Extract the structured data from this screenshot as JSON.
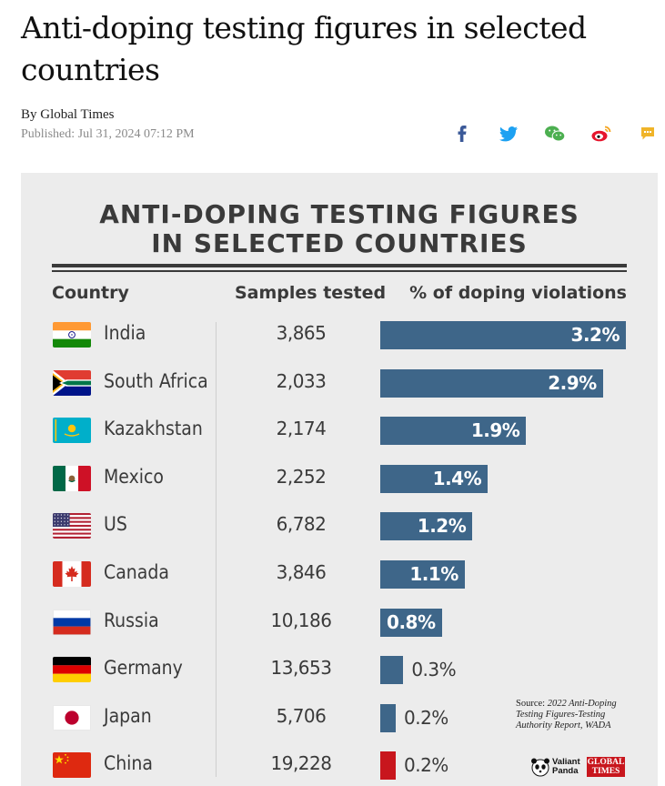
{
  "article": {
    "headline": "Anti-doping testing figures in selected countries",
    "byline": "By Global Times",
    "published": "Published: Jul 31, 2024 07:12 PM"
  },
  "share": {
    "icons": [
      "facebook-icon",
      "twitter-icon",
      "wechat-icon",
      "weibo-icon",
      "comment-icon"
    ],
    "colors": {
      "facebook": "#3b5998",
      "twitter": "#1da1f2",
      "wechat": "#4caf50",
      "weibo": "#e6162d",
      "comment": "#f0b429"
    }
  },
  "chart_data": {
    "type": "bar",
    "title_line1": "ANTI-DOPING TESTING FIGURES",
    "title_line2": "IN SELECTED COUNTRIES",
    "columns": {
      "country": "Country",
      "samples": "Samples tested",
      "pct": "% of doping violations"
    },
    "categories": [
      "India",
      "South Africa",
      "Kazakhstan",
      "Mexico",
      "US",
      "Canada",
      "Russia",
      "Germany",
      "Japan",
      "China"
    ],
    "samples_tested": [
      "3,865",
      "2,033",
      "2,174",
      "2,252",
      "6,782",
      "3,846",
      "10,186",
      "13,653",
      "5,706",
      "19,228"
    ],
    "values": [
      3.2,
      2.9,
      1.9,
      1.4,
      1.2,
      1.1,
      0.8,
      0.3,
      0.2,
      0.2
    ],
    "value_labels": [
      "3.2%",
      "2.9%",
      "1.9%",
      "1.4%",
      "1.2%",
      "1.1%",
      "0.8%",
      "0.3%",
      "0.2%",
      "0.2%"
    ],
    "bar_color": "#3e6689",
    "highlight_color": "#c8161d",
    "highlight_category": "China",
    "xlim": [
      0,
      3.2
    ]
  },
  "source": {
    "prefix": "Source: ",
    "text": "2022 Anti-Doping Testing Figures-Testing Authority Report, WADA"
  },
  "logos": {
    "panda_line1": "Valiant",
    "panda_line2": "Panda",
    "gt_line1": "GLOBAL",
    "gt_line2": "TIMES"
  }
}
